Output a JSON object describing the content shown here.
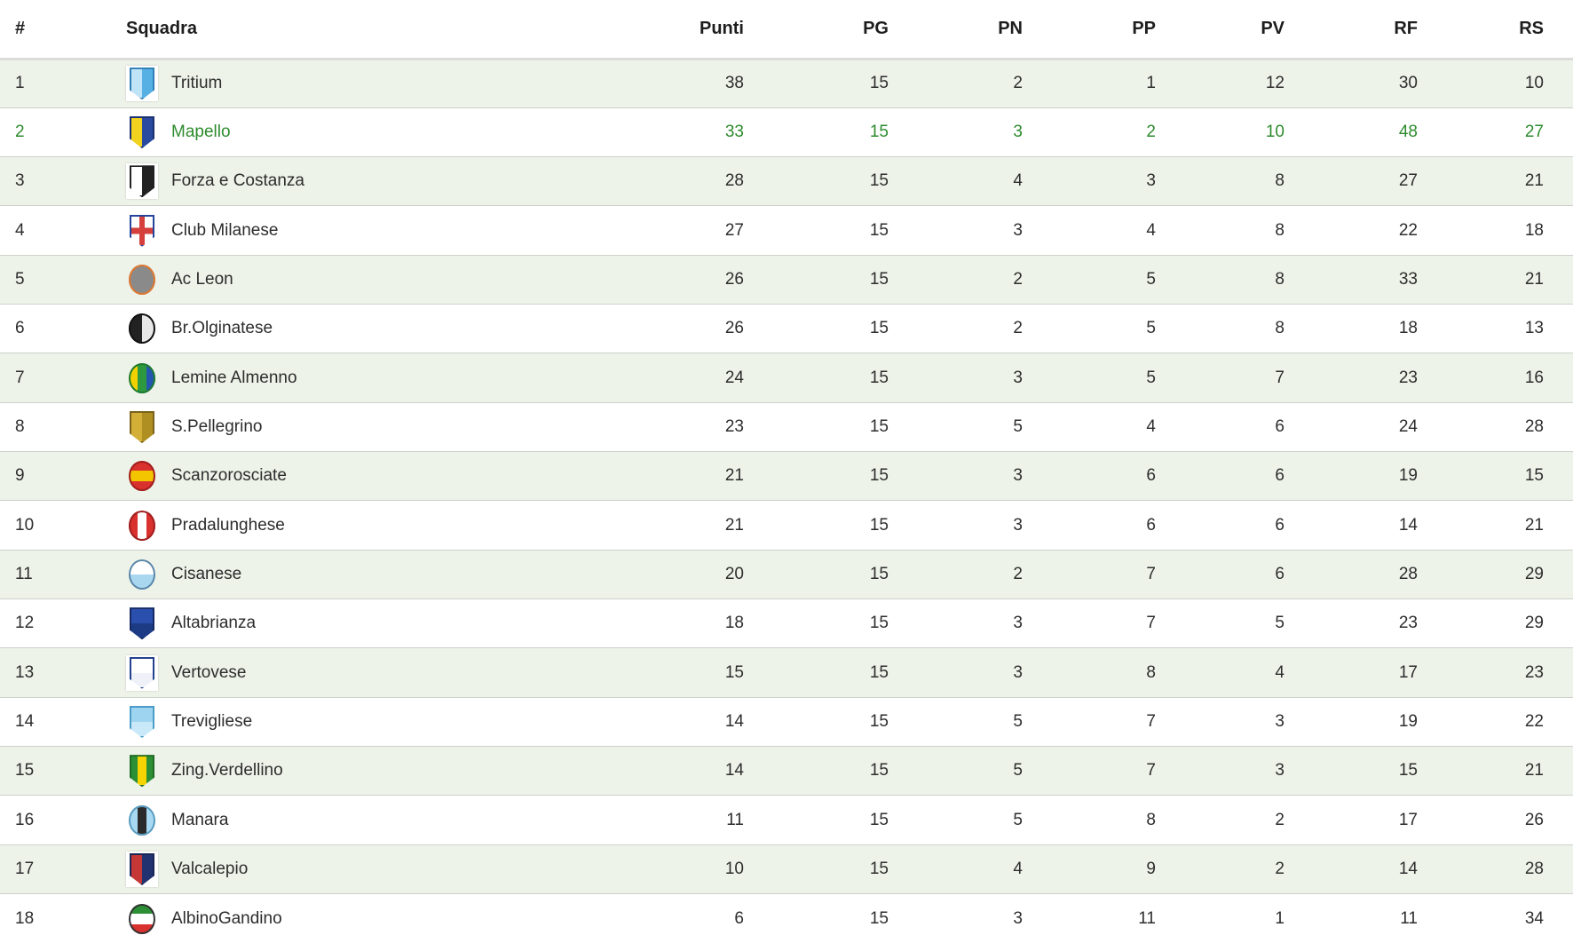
{
  "colors": {
    "row_stripe": "#edf3e9",
    "row_alt": "#ffffff",
    "highlight_text": "#2e8b2e",
    "header_text": "#1d1d1d",
    "cell_text": "#2d2d2d",
    "row_divider": "#cdd1ca",
    "header_border": "#dcdcdc"
  },
  "table": {
    "columns": [
      {
        "key": "pos",
        "label": "#"
      },
      {
        "key": "team",
        "label": "Squadra"
      },
      {
        "key": "punti",
        "label": "Punti"
      },
      {
        "key": "pg",
        "label": "PG"
      },
      {
        "key": "pn",
        "label": "PN"
      },
      {
        "key": "pp",
        "label": "PP"
      },
      {
        "key": "pv",
        "label": "PV"
      },
      {
        "key": "rf",
        "label": "RF"
      },
      {
        "key": "rs",
        "label": "RS"
      }
    ],
    "rows": [
      {
        "pos": "1",
        "team": "Tritium",
        "punti": "38",
        "pg": "15",
        "pn": "2",
        "pp": "1",
        "pv": "12",
        "rf": "30",
        "rs": "10",
        "highlighted": false,
        "badge": {
          "shape": "shield",
          "split": "v",
          "colors": [
            "#bfe3f7",
            "#56b0e3"
          ],
          "border": "#2f7fb6",
          "box": true
        }
      },
      {
        "pos": "2",
        "team": "Mapello",
        "punti": "33",
        "pg": "15",
        "pn": "3",
        "pp": "2",
        "pv": "10",
        "rf": "48",
        "rs": "27",
        "highlighted": true,
        "badge": {
          "shape": "shield",
          "split": "v",
          "colors": [
            "#f1d21f",
            "#2a4aa0"
          ],
          "border": "#1c3170",
          "box": false
        }
      },
      {
        "pos": "3",
        "team": "Forza e Costanza",
        "punti": "28",
        "pg": "15",
        "pn": "4",
        "pp": "3",
        "pv": "8",
        "rf": "27",
        "rs": "21",
        "highlighted": false,
        "badge": {
          "shape": "shield",
          "split": "v",
          "colors": [
            "#ffffff",
            "#222222"
          ],
          "border": "#222222",
          "box": true
        }
      },
      {
        "pos": "4",
        "team": "Club Milanese",
        "punti": "27",
        "pg": "15",
        "pn": "3",
        "pp": "4",
        "pv": "8",
        "rf": "22",
        "rs": "18",
        "highlighted": false,
        "badge": {
          "shape": "shield",
          "split": "cross",
          "colors": [
            "#ffffff",
            "#d5403c"
          ],
          "border": "#26449c",
          "box": false
        }
      },
      {
        "pos": "5",
        "team": "Ac Leon",
        "punti": "26",
        "pg": "15",
        "pn": "2",
        "pp": "5",
        "pv": "8",
        "rf": "33",
        "rs": "21",
        "highlighted": false,
        "badge": {
          "shape": "circle",
          "split": "solid",
          "colors": [
            "#8a8a8a"
          ],
          "border": "#e07830",
          "box": false
        }
      },
      {
        "pos": "6",
        "team": "Br.Olginatese",
        "punti": "26",
        "pg": "15",
        "pn": "2",
        "pp": "5",
        "pv": "8",
        "rf": "18",
        "rs": "13",
        "highlighted": false,
        "badge": {
          "shape": "circle",
          "split": "v",
          "colors": [
            "#222222",
            "#e8e8e8"
          ],
          "border": "#111111",
          "box": false
        }
      },
      {
        "pos": "7",
        "team": "Lemine Almenno",
        "punti": "24",
        "pg": "15",
        "pn": "3",
        "pp": "5",
        "pv": "7",
        "rf": "23",
        "rs": "16",
        "highlighted": false,
        "badge": {
          "shape": "circle",
          "split": "v3",
          "colors": [
            "#f2d100",
            "#2c9940",
            "#2456b0"
          ],
          "border": "#1e7a30",
          "box": false
        }
      },
      {
        "pos": "8",
        "team": "S.Pellegrino",
        "punti": "23",
        "pg": "15",
        "pn": "5",
        "pp": "4",
        "pv": "6",
        "rf": "24",
        "rs": "28",
        "highlighted": false,
        "badge": {
          "shape": "shield",
          "split": "v",
          "colors": [
            "#d4af37",
            "#b08f22"
          ],
          "border": "#7a631a",
          "box": false
        }
      },
      {
        "pos": "9",
        "team": "Scanzorosciate",
        "punti": "21",
        "pg": "15",
        "pn": "3",
        "pp": "6",
        "pv": "6",
        "rf": "19",
        "rs": "15",
        "highlighted": false,
        "badge": {
          "shape": "circle",
          "split": "h3",
          "colors": [
            "#d8312e",
            "#f2c500",
            "#d8312e"
          ],
          "border": "#a01f1f",
          "box": false
        }
      },
      {
        "pos": "10",
        "team": "Pradalunghese",
        "punti": "21",
        "pg": "15",
        "pn": "3",
        "pp": "6",
        "pv": "6",
        "rf": "14",
        "rs": "21",
        "highlighted": false,
        "badge": {
          "shape": "circle",
          "split": "v3",
          "colors": [
            "#d8312e",
            "#ffffff",
            "#d8312e"
          ],
          "border": "#a01f1f",
          "box": false
        }
      },
      {
        "pos": "11",
        "team": "Cisanese",
        "punti": "20",
        "pg": "15",
        "pn": "2",
        "pp": "7",
        "pv": "6",
        "rf": "28",
        "rs": "29",
        "highlighted": false,
        "badge": {
          "shape": "circle",
          "split": "h",
          "colors": [
            "#ffffff",
            "#a9d7ef"
          ],
          "border": "#5a87a8",
          "box": false
        }
      },
      {
        "pos": "12",
        "team": "Altabrianza",
        "punti": "18",
        "pg": "15",
        "pn": "3",
        "pp": "7",
        "pv": "5",
        "rf": "23",
        "rs": "29",
        "highlighted": false,
        "badge": {
          "shape": "shield",
          "split": "h",
          "colors": [
            "#2a4fad",
            "#1d3a85"
          ],
          "border": "#162962",
          "box": false
        }
      },
      {
        "pos": "13",
        "team": "Vertovese",
        "punti": "15",
        "pg": "15",
        "pn": "3",
        "pp": "8",
        "pv": "4",
        "rf": "17",
        "rs": "23",
        "highlighted": false,
        "badge": {
          "shape": "shield",
          "split": "h",
          "colors": [
            "#ffffff",
            "#eef2f8"
          ],
          "border": "#24418f",
          "box": true
        }
      },
      {
        "pos": "14",
        "team": "Trevigliese",
        "punti": "14",
        "pg": "15",
        "pn": "5",
        "pp": "7",
        "pv": "3",
        "rf": "19",
        "rs": "22",
        "highlighted": false,
        "badge": {
          "shape": "shield",
          "split": "h",
          "colors": [
            "#9fd4f0",
            "#c9e9f8"
          ],
          "border": "#4a9cc9",
          "box": false
        }
      },
      {
        "pos": "15",
        "team": "Zing.Verdellino",
        "punti": "14",
        "pg": "15",
        "pn": "5",
        "pp": "7",
        "pv": "3",
        "rf": "15",
        "rs": "21",
        "highlighted": false,
        "badge": {
          "shape": "shield",
          "split": "v3",
          "colors": [
            "#2c8f35",
            "#f5d400",
            "#2c8f35"
          ],
          "border": "#1e6b26",
          "box": false
        }
      },
      {
        "pos": "16",
        "team": "Manara",
        "punti": "11",
        "pg": "15",
        "pn": "5",
        "pp": "8",
        "pv": "2",
        "rf": "17",
        "rs": "26",
        "highlighted": false,
        "badge": {
          "shape": "circle",
          "split": "v3",
          "colors": [
            "#a9d9f2",
            "#2b2b2b",
            "#a9d9f2"
          ],
          "border": "#5a9cc0",
          "box": false
        }
      },
      {
        "pos": "17",
        "team": "Valcalepio",
        "punti": "10",
        "pg": "15",
        "pn": "4",
        "pp": "9",
        "pv": "2",
        "rf": "14",
        "rs": "28",
        "highlighted": false,
        "badge": {
          "shape": "shield",
          "split": "v",
          "colors": [
            "#c53636",
            "#223270"
          ],
          "border": "#1a2656",
          "box": true
        }
      },
      {
        "pos": "18",
        "team": "AlbinoGandino",
        "punti": "6",
        "pg": "15",
        "pn": "3",
        "pp": "11",
        "pv": "1",
        "rf": "11",
        "rs": "34",
        "highlighted": false,
        "badge": {
          "shape": "circle",
          "split": "h3",
          "colors": [
            "#2c8f35",
            "#ffffff",
            "#d8312e"
          ],
          "border": "#333333",
          "box": false
        }
      }
    ]
  }
}
